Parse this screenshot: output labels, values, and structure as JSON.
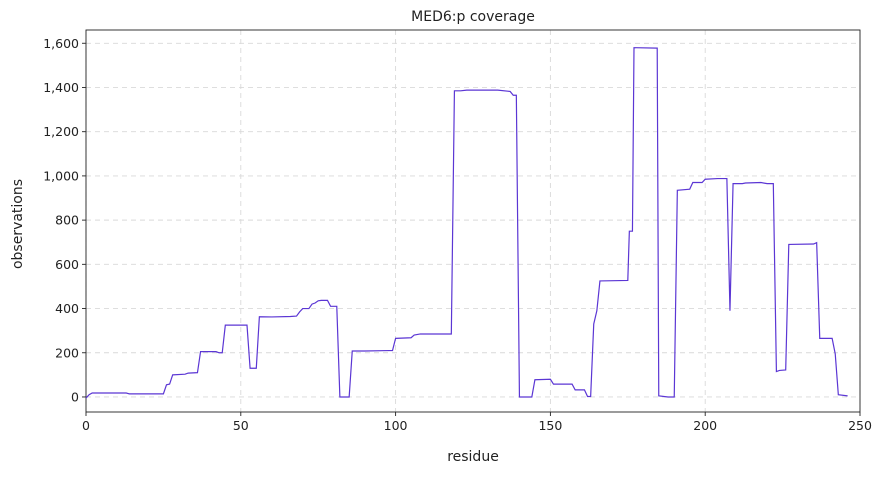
{
  "chart_data": {
    "type": "line",
    "title": "MED6:p coverage",
    "x_label": "residue",
    "y_label": "observations",
    "x": [
      0,
      1,
      2,
      13,
      14,
      25,
      26,
      27,
      28,
      32,
      33,
      36,
      37,
      42,
      43,
      44,
      45,
      52,
      53,
      55,
      56,
      60,
      66,
      68,
      69,
      70,
      72,
      73,
      74,
      75,
      76,
      78,
      79,
      81,
      82,
      85,
      86,
      90,
      98,
      99,
      100,
      105,
      106,
      108,
      116,
      118,
      119,
      121,
      123,
      133,
      137,
      138,
      139,
      140,
      144,
      145,
      150,
      151,
      157,
      158,
      161,
      162,
      163,
      164,
      165,
      166,
      175,
      175.5,
      176.5,
      177,
      184.5,
      185,
      188,
      190,
      191,
      195,
      196,
      199,
      200,
      204,
      207,
      208,
      209,
      212,
      213,
      218,
      220,
      222,
      223,
      224,
      226,
      227,
      235,
      236,
      237,
      241,
      242,
      243,
      246
    ],
    "series": [
      {
        "name": "MED6:p",
        "color": "#5b36d4",
        "values": [
          -5,
          10,
          18,
          18,
          14,
          14,
          55,
          58,
          100,
          103,
          108,
          110,
          205,
          205,
          200,
          200,
          325,
          325,
          130,
          130,
          363,
          362,
          364,
          366,
          385,
          400,
          400,
          420,
          425,
          435,
          437,
          437,
          410,
          410,
          0,
          0,
          208,
          208,
          210,
          210,
          265,
          268,
          280,
          285,
          285,
          285,
          1385,
          1385,
          1388,
          1388,
          1382,
          1365,
          1365,
          0,
          0,
          78,
          80,
          58,
          58,
          32,
          32,
          2,
          2,
          330,
          390,
          525,
          527,
          750,
          750,
          1580,
          1578,
          5,
          0,
          0,
          935,
          940,
          970,
          970,
          985,
          988,
          988,
          390,
          965,
          965,
          968,
          970,
          965,
          965,
          115,
          120,
          122,
          690,
          692,
          698,
          265,
          265,
          195,
          10,
          5
        ]
      }
    ],
    "xlim": [
      0,
      250
    ],
    "xticks": [
      0,
      50,
      100,
      150,
      200,
      250
    ],
    "ylim": [
      -68,
      1660
    ],
    "yticks": [
      0,
      200,
      400,
      600,
      800,
      {
        "value": 1000,
        "label": "1,000"
      },
      {
        "value": 1200,
        "label": "1,200"
      },
      {
        "value": 1400,
        "label": "1,400"
      },
      {
        "value": 1600,
        "label": "1,600"
      }
    ],
    "grid": true
  }
}
